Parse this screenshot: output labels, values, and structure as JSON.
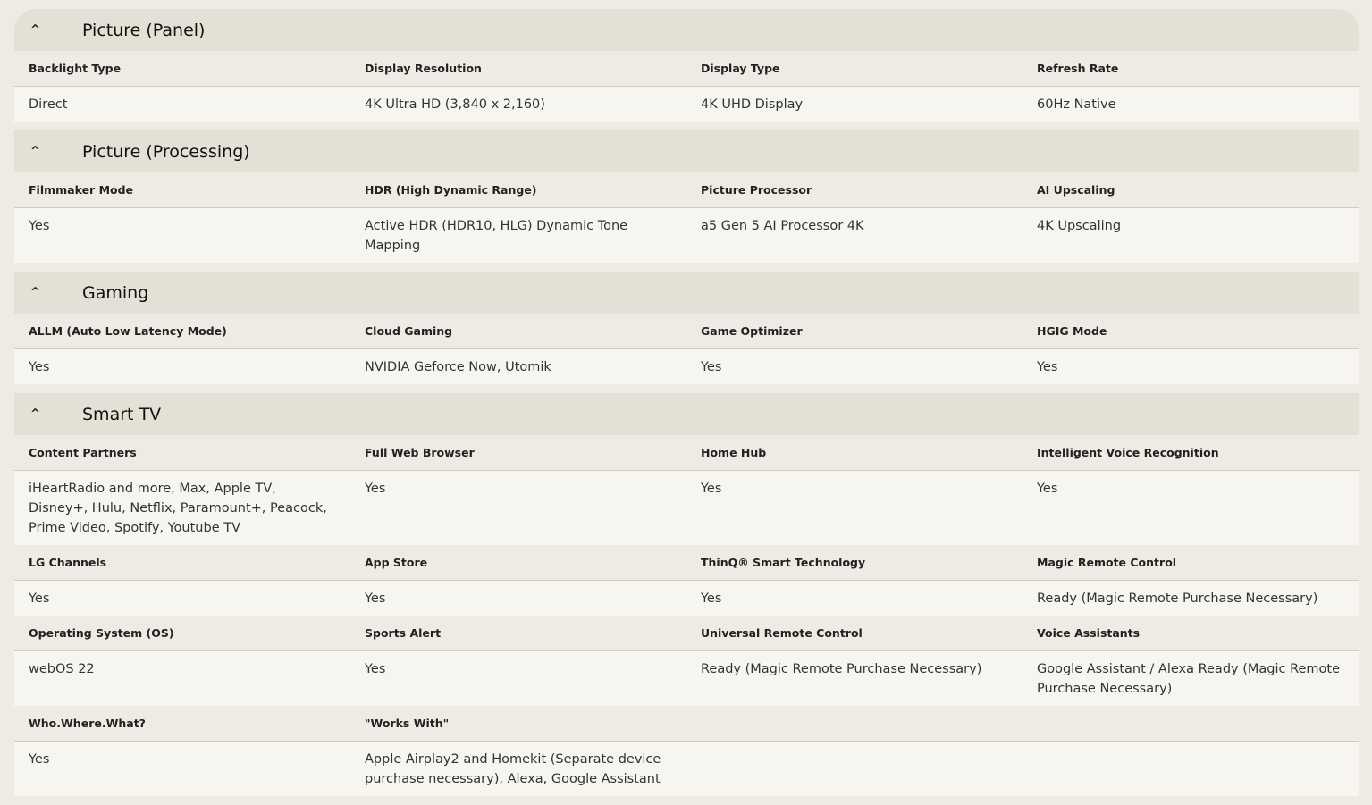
{
  "sections": [
    {
      "title": "Picture (Panel)",
      "groups": [
        {
          "labels": [
            "Backlight Type",
            "Display Resolution",
            "Display Type",
            "Refresh Rate"
          ],
          "values": [
            "Direct",
            "4K Ultra HD (3,840 x 2,160)",
            "4K UHD Display",
            "60Hz Native"
          ]
        }
      ]
    },
    {
      "title": "Picture (Processing)",
      "groups": [
        {
          "labels": [
            "Filmmaker Mode",
            "HDR (High Dynamic Range)",
            "Picture Processor",
            "AI Upscaling"
          ],
          "values": [
            "Yes",
            "Active HDR (HDR10, HLG) Dynamic Tone Mapping",
            "a5 Gen 5 AI Processor 4K",
            "4K Upscaling"
          ]
        }
      ]
    },
    {
      "title": "Gaming",
      "groups": [
        {
          "labels": [
            "ALLM (Auto Low Latency Mode)",
            "Cloud Gaming",
            "Game Optimizer",
            "HGIG Mode"
          ],
          "values": [
            "Yes",
            "NVIDIA Geforce Now, Utomik",
            "Yes",
            "Yes"
          ]
        }
      ]
    },
    {
      "title": "Smart TV",
      "groups": [
        {
          "labels": [
            "Content Partners",
            "Full Web Browser",
            "Home Hub",
            "Intelligent Voice Recognition"
          ],
          "values": [
            "iHeartRadio and more, Max, Apple TV, Disney+, Hulu, Netflix, Paramount+, Peacock, Prime Video, Spotify, Youtube TV",
            "Yes",
            "Yes",
            "Yes"
          ]
        },
        {
          "labels": [
            "LG Channels",
            "App Store",
            "ThinQ® Smart Technology",
            "Magic Remote Control"
          ],
          "values": [
            "Yes",
            "Yes",
            "Yes",
            "Ready (Magic Remote Purchase Necessary)"
          ]
        },
        {
          "labels": [
            "Operating System (OS)",
            "Sports Alert",
            "Universal Remote Control",
            "Voice Assistants"
          ],
          "values": [
            "webOS 22",
            "Yes",
            "Ready (Magic Remote Purchase Necessary)",
            "Google Assistant / Alexa Ready (Magic Remote Purchase Necessary)"
          ]
        },
        {
          "labels": [
            "Who.Where.What?",
            "\"Works With\"",
            "",
            ""
          ],
          "values": [
            "Yes",
            "Apple Airplay2 and Homekit (Separate device purchase necessary), Alexa, Google Assistant",
            "",
            ""
          ]
        }
      ]
    }
  ]
}
